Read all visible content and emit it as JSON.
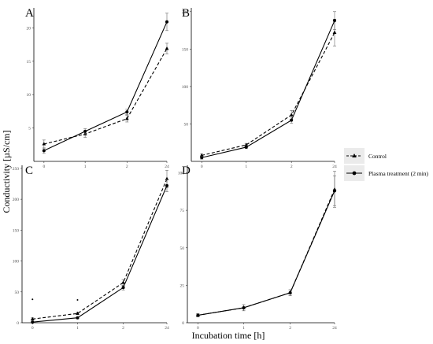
{
  "figure": {
    "ylabel": "Conductivity [µS/cm]",
    "xlabel": "Incubation time [h]"
  },
  "legend": {
    "items": [
      {
        "label": "Control",
        "style": "dashed",
        "marker": "triangle"
      },
      {
        "label": "Plasma treatment (2 min)",
        "style": "solid",
        "marker": "circle"
      }
    ]
  },
  "chart_data": [
    {
      "type": "line",
      "panel": "A",
      "categories": [
        "0",
        "1",
        "2",
        "24"
      ],
      "ylim": [
        0,
        23
      ],
      "yticks": [
        5,
        10,
        15,
        20
      ],
      "series": [
        {
          "name": "Control",
          "values": [
            2.6,
            4.1,
            6.4,
            16.9
          ],
          "errors": [
            0.6,
            0.5,
            0.5,
            0.8
          ]
        },
        {
          "name": "Plasma treatment (2 min)",
          "values": [
            1.6,
            4.5,
            7.4,
            20.9
          ],
          "errors": [
            0.4,
            0.4,
            0.4,
            1.3
          ]
        }
      ]
    },
    {
      "type": "line",
      "panel": "B",
      "categories": [
        "0",
        "1",
        "2",
        "24"
      ],
      "ylim": [
        0,
        205
      ],
      "yticks": [
        50,
        100,
        150,
        200
      ],
      "series": [
        {
          "name": "Control",
          "values": [
            8,
            22,
            62,
            172
          ],
          "errors": [
            2,
            2,
            6,
            18
          ]
        },
        {
          "name": "Plasma treatment (2 min)",
          "values": [
            5,
            19,
            55,
            188
          ],
          "errors": [
            2,
            2,
            4,
            12
          ]
        }
      ]
    },
    {
      "type": "line",
      "panel": "C",
      "categories": [
        "0",
        "1",
        "2",
        "24"
      ],
      "ylim": [
        0,
        255
      ],
      "yticks": [
        0,
        50,
        100,
        150,
        200,
        250
      ],
      "series": [
        {
          "name": "Control",
          "values": [
            6,
            15,
            65,
            233
          ],
          "errors": [
            2,
            2,
            5,
            14
          ]
        },
        {
          "name": "Plasma treatment (2 min)",
          "values": [
            1,
            8,
            57,
            222
          ],
          "errors": [
            1,
            1,
            4,
            10
          ]
        }
      ],
      "outliers": [
        {
          "x": "0",
          "y": 38
        },
        {
          "x": "1",
          "y": 37
        }
      ]
    },
    {
      "type": "line",
      "panel": "D",
      "categories": [
        "0",
        "1",
        "2",
        "24"
      ],
      "ylim": [
        0,
        105
      ],
      "yticks": [
        0,
        25,
        50,
        75,
        100
      ],
      "series": [
        {
          "name": "Control",
          "values": [
            5,
            10,
            20,
            89
          ],
          "errors": [
            1,
            2,
            2,
            12
          ]
        },
        {
          "name": "Plasma treatment (2 min)",
          "values": [
            5,
            10,
            20,
            88
          ],
          "errors": [
            1,
            2,
            2,
            10
          ]
        }
      ]
    }
  ]
}
